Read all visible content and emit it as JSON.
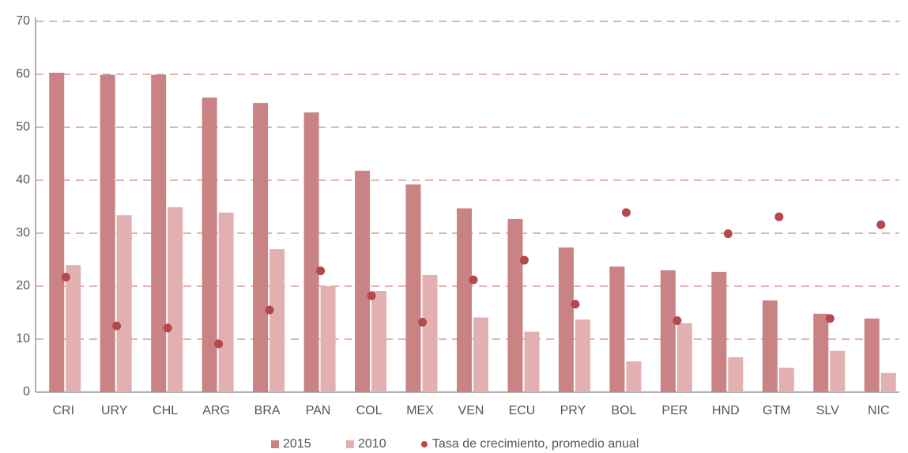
{
  "chart_data": {
    "type": "bar",
    "categories": [
      "CRI",
      "URY",
      "CHL",
      "ARG",
      "BRA",
      "PAN",
      "COL",
      "MEX",
      "VEN",
      "ECU",
      "PRY",
      "BOL",
      "PER",
      "HND",
      "GTM",
      "SLV",
      "NIC"
    ],
    "series": [
      {
        "name": "2015",
        "type": "bar",
        "color": "#c98384",
        "values": [
          60.3,
          59.9,
          59.9,
          55.6,
          54.6,
          52.8,
          41.8,
          39.2,
          34.7,
          32.7,
          27.3,
          23.7,
          23.0,
          22.7,
          17.3,
          14.8,
          13.9
        ]
      },
      {
        "name": "2010",
        "type": "bar",
        "color": "#e2b0b0",
        "values": [
          24.0,
          33.4,
          34.9,
          33.9,
          27.0,
          20.0,
          19.1,
          22.1,
          14.1,
          11.4,
          13.7,
          5.8,
          13.0,
          6.6,
          4.6,
          7.8,
          3.6
        ]
      },
      {
        "name": "Tasa de crecimiento, promedio anual",
        "type": "scatter",
        "color": "#b5484c",
        "values": [
          21.7,
          12.5,
          12.1,
          9.1,
          15.5,
          22.9,
          18.2,
          13.2,
          21.2,
          24.9,
          16.6,
          33.9,
          13.5,
          29.9,
          33.1,
          13.9,
          31.6
        ]
      }
    ],
    "ylim": [
      0,
      70
    ],
    "yticks": [
      0,
      10,
      20,
      30,
      40,
      50,
      60,
      70
    ],
    "grid": true,
    "legend": "bottom"
  }
}
